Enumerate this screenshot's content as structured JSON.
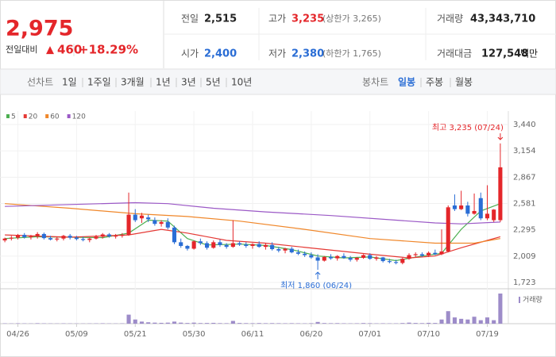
{
  "header": {
    "price": "2,975",
    "change_label": "전일대비",
    "change": "460",
    "change_pct": "+18.29%",
    "prev_label": "전일",
    "prev": "2,515",
    "high_label": "고가",
    "high": "3,235",
    "upper_limit": "(상한가 3,265)",
    "volume_label": "거래량",
    "volume": "43,343,710",
    "open_label": "시가",
    "open": "2,400",
    "low_label": "저가",
    "low": "2,380",
    "lower_limit": "(하한가 1,765)",
    "amount_label": "거래대금",
    "amount": "127,548",
    "amount_unit": "백만"
  },
  "tabs": {
    "line_chart": "선차트",
    "periods": [
      "1일",
      "1주일",
      "3개월",
      "1년",
      "3년",
      "5년",
      "10년"
    ],
    "candle_chart": "봉차트",
    "candle_periods": [
      "일봉",
      "주봉",
      "월봉"
    ]
  },
  "chart_data": {
    "type": "candlestick",
    "categories": [
      null,
      null,
      "04/26",
      null,
      null,
      null,
      null,
      null,
      null,
      null,
      null,
      "05/09",
      null,
      null,
      null,
      null,
      null,
      null,
      null,
      null,
      "05/21",
      null,
      null,
      null,
      null,
      null,
      null,
      null,
      null,
      "05/30",
      null,
      null,
      null,
      null,
      null,
      null,
      null,
      null,
      "06/11",
      null,
      null,
      null,
      null,
      null,
      null,
      null,
      null,
      "06/20",
      null,
      null,
      null,
      null,
      null,
      null,
      null,
      null,
      "07/01",
      null,
      null,
      null,
      null,
      null,
      null,
      null,
      null,
      "07/10",
      null,
      null,
      null,
      null,
      null,
      null,
      null,
      null,
      "07/19",
      null,
      null
    ],
    "open": [
      2180,
      2200,
      2210,
      2240,
      2215,
      2225,
      2250,
      2205,
      2190,
      2200,
      2230,
      2210,
      2195,
      2185,
      2200,
      2220,
      2245,
      2225,
      2230,
      2240,
      2460,
      2420,
      2430,
      2400,
      2360,
      2380,
      2320,
      2160,
      2120,
      2090,
      2170,
      2150,
      2100,
      2160,
      2130,
      2110,
      2150,
      2135,
      2120,
      2140,
      2110,
      2130,
      2085,
      2070,
      2090,
      2050,
      2035,
      2020,
      1995,
      1960,
      2000,
      1985,
      2010,
      1990,
      1970,
      1990,
      2020,
      1980,
      1995,
      1955,
      1945,
      1935,
      1980,
      2020,
      2030,
      2015,
      2045,
      2030,
      2060,
      2560,
      2520,
      2560,
      2470,
      2640,
      2420,
      2400,
      2400
    ],
    "high": [
      2210,
      2230,
      2250,
      2260,
      2240,
      2270,
      2265,
      2230,
      2220,
      2240,
      2250,
      2230,
      2220,
      2210,
      2240,
      2260,
      2260,
      2250,
      2260,
      2700,
      2520,
      2480,
      2460,
      2430,
      2400,
      2420,
      2340,
      2200,
      2130,
      2180,
      2200,
      2170,
      2180,
      2190,
      2150,
      2400,
      2170,
      2160,
      2150,
      2170,
      2150,
      2160,
      2110,
      2100,
      2110,
      2080,
      2060,
      2050,
      2030,
      2010,
      2030,
      2020,
      2040,
      2010,
      2000,
      2030,
      2040,
      2010,
      2000,
      1980,
      1970,
      1990,
      2040,
      2050,
      2050,
      2060,
      2080,
      2300,
      2560,
      2680,
      2720,
      2600,
      2690,
      2700,
      2780,
      2520,
      3235
    ],
    "low": [
      2160,
      2180,
      2190,
      2200,
      2190,
      2200,
      2190,
      2180,
      2170,
      2180,
      2190,
      2180,
      2170,
      2160,
      2190,
      2200,
      2210,
      2200,
      2210,
      2230,
      2380,
      2370,
      2380,
      2340,
      2330,
      2300,
      2140,
      2100,
      2070,
      2080,
      2130,
      2080,
      2090,
      2110,
      2090,
      2100,
      2120,
      2100,
      2090,
      2100,
      2080,
      2070,
      2050,
      2040,
      2040,
      2020,
      2000,
      1980,
      1860,
      1950,
      1970,
      1960,
      1980,
      1950,
      1950,
      1980,
      1970,
      1960,
      1940,
      1930,
      1920,
      1920,
      1970,
      2000,
      2000,
      2000,
      2020,
      2020,
      2050,
      2500,
      2510,
      2440,
      2460,
      2400,
      2400,
      2380,
      2380
    ],
    "close": [
      2200,
      2210,
      2240,
      2215,
      2225,
      2250,
      2205,
      2190,
      2200,
      2230,
      2210,
      2195,
      2185,
      2200,
      2220,
      2245,
      2225,
      2230,
      2240,
      2460,
      2400,
      2450,
      2410,
      2360,
      2380,
      2320,
      2160,
      2120,
      2090,
      2170,
      2150,
      2100,
      2160,
      2130,
      2110,
      2150,
      2135,
      2120,
      2140,
      2110,
      2130,
      2085,
      2070,
      2090,
      2050,
      2035,
      2020,
      1995,
      1960,
      2000,
      1985,
      2010,
      1990,
      1970,
      1990,
      2020,
      1980,
      1995,
      1955,
      1945,
      1935,
      1980,
      2020,
      2030,
      2015,
      2045,
      2030,
      2060,
      2540,
      2520,
      2560,
      2470,
      2500,
      2420,
      2470,
      2515,
      2975
    ],
    "volume": [
      500000,
      400000,
      600000,
      450000,
      400000,
      700000,
      500000,
      400000,
      350000,
      500000,
      400000,
      350000,
      300000,
      400000,
      450000,
      600000,
      400000,
      350000,
      500000,
      13000000,
      6000000,
      3000000,
      2000000,
      1500000,
      1200000,
      1500000,
      3000000,
      1500000,
      1000000,
      1500000,
      900000,
      1000000,
      1200000,
      800000,
      700000,
      4000000,
      1000000,
      800000,
      700000,
      900000,
      700000,
      800000,
      700000,
      600000,
      700000,
      600000,
      500000,
      700000,
      2500000,
      900000,
      700000,
      800000,
      600000,
      500000,
      600000,
      900000,
      700000,
      500000,
      600000,
      500000,
      500000,
      900000,
      1500000,
      1000000,
      800000,
      1200000,
      1000000,
      6000000,
      18000000,
      9000000,
      7000000,
      6000000,
      10000000,
      5000000,
      9000000,
      5000000,
      43343710
    ],
    "volume_ylim": [
      0,
      43343710
    ],
    "volume_label": "거래량",
    "up_color": "#e4262a",
    "down_color": "#2a6dd5",
    "volume_color": "#9d8cc9",
    "ylim": [
      1723,
      3440
    ],
    "yticks": [
      {
        "value": 1723,
        "label": "1,723"
      },
      {
        "value": 2009,
        "label": "2,009"
      },
      {
        "value": 2295,
        "label": "2,295"
      },
      {
        "value": 2581,
        "label": "2,581"
      },
      {
        "value": 2867,
        "label": "2,867"
      },
      {
        "value": 3154,
        "label": "3,154"
      },
      {
        "value": 3440,
        "label": "3,440"
      }
    ],
    "grid": true,
    "moving_averages": [
      {
        "name": "5",
        "color": "#4caf50",
        "x": [
          0,
          5,
          10,
          15,
          19,
          22,
          25,
          28,
          31,
          36,
          40,
          44,
          48,
          52,
          56,
          60,
          64,
          67,
          70,
          73,
          76
        ],
        "values": [
          2200,
          2220,
          2215,
          2210,
          2260,
          2400,
          2390,
          2200,
          2130,
          2140,
          2125,
          2080,
          2010,
          1990,
          2000,
          1960,
          2010,
          2040,
          2300,
          2500,
          2580
        ]
      },
      {
        "name": "20",
        "color": "#e53935",
        "x": [
          0,
          10,
          19,
          24,
          28,
          34,
          40,
          48,
          56,
          62,
          66,
          70,
          74,
          76
        ],
        "values": [
          2240,
          2215,
          2240,
          2300,
          2260,
          2180,
          2150,
          2090,
          2030,
          1990,
          2010,
          2100,
          2180,
          2220
        ]
      },
      {
        "name": "60",
        "color": "#f0872a",
        "x": [
          0,
          10,
          20,
          28,
          36,
          46,
          56,
          66,
          72,
          76
        ],
        "values": [
          2580,
          2530,
          2470,
          2440,
          2390,
          2300,
          2200,
          2150,
          2150,
          2200
        ]
      },
      {
        "name": "120",
        "color": "#9b59c6",
        "x": [
          0,
          10,
          20,
          25,
          32,
          40,
          50,
          60,
          66,
          70,
          76
        ],
        "values": [
          2550,
          2570,
          2590,
          2580,
          2530,
          2490,
          2450,
          2400,
          2370,
          2360,
          2380
        ]
      }
    ],
    "annotations": {
      "high_label": "최고 3,235 (07/24)",
      "low_label": "최저 1,860 (06/24)"
    }
  }
}
